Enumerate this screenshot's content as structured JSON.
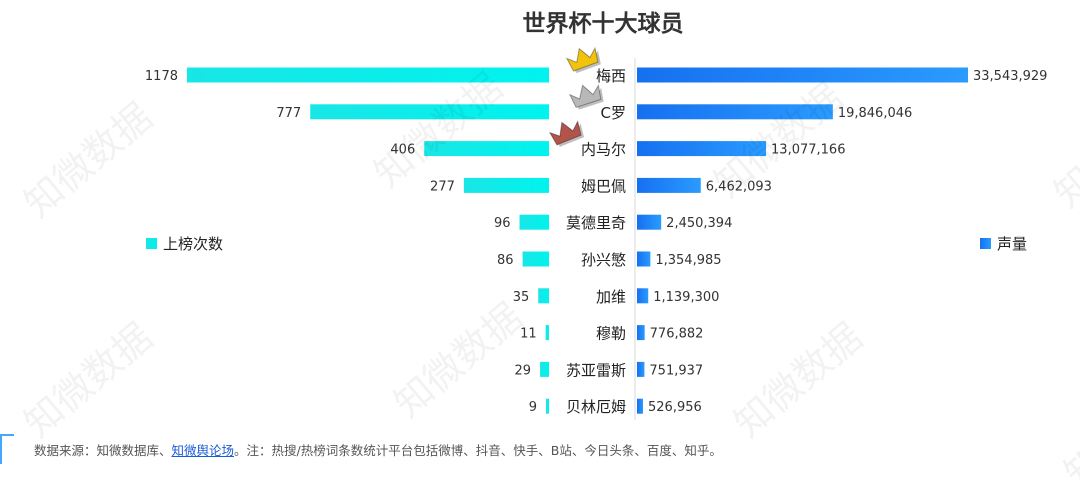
{
  "page": {
    "footer_prefix": "数据来源：知微数据库、",
    "footer_link": "知微舆论场",
    "footer_suffix": "。注：热搜/热榜词条数统计平台包括微博、抖音、快手、B站、今日头条、百度、知乎。",
    "watermark_text": "知微数据"
  },
  "chart_data": {
    "type": "bar",
    "title": "世界杯十大球员",
    "categories": [
      "梅西",
      "C罗",
      "内马尔",
      "姆巴佩",
      "莫德里奇",
      "孙兴慜",
      "加维",
      "穆勒",
      "苏亚雷斯",
      "贝林厄姆"
    ],
    "series": [
      {
        "name": "上榜次数",
        "values": [
          1178,
          777,
          406,
          277,
          96,
          86,
          35,
          11,
          29,
          9
        ],
        "labels": [
          "1178",
          "777",
          "406",
          "277",
          "96",
          "86",
          "35",
          "11",
          "29",
          "9"
        ],
        "color_start": "#19e6e6",
        "color_end": "#00f3ee",
        "direction": "left"
      },
      {
        "name": "声量",
        "values": [
          33543929,
          19846046,
          13077166,
          6462093,
          2450394,
          1354985,
          1139300,
          776882,
          751937,
          526956
        ],
        "labels": [
          "33,543,929",
          "19,846,046",
          "13,077,166",
          "6,462,093",
          "2,450,394",
          "1,354,985",
          "1,139,300",
          "776,882",
          "751,937",
          "526,956"
        ],
        "color_start": "#1670f0",
        "color_end": "#2a9bff",
        "direction": "right"
      }
    ],
    "crown_icons": [
      "gold-crown-icon",
      "silver-crown-icon",
      "bronze-crown-icon"
    ],
    "crown_colors": [
      "#f2c30c",
      "#b8b8b8",
      "#b2544a"
    ],
    "legend_position": "left and right"
  }
}
